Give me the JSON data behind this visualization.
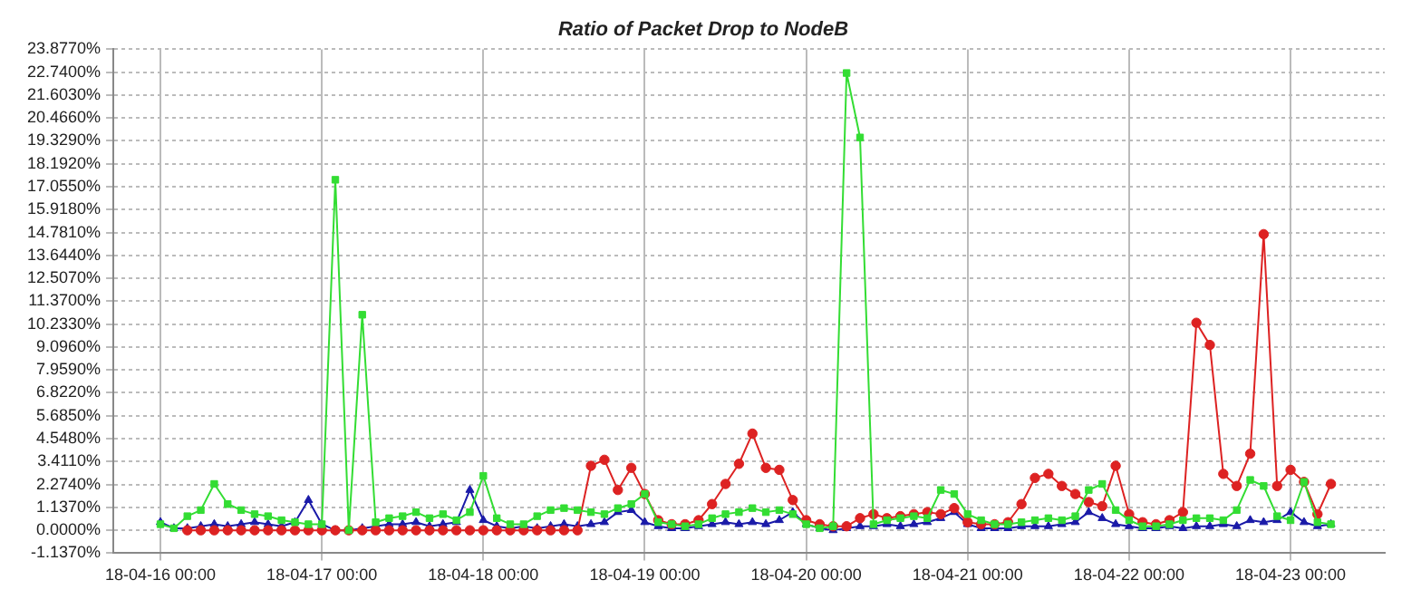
{
  "chart_data": {
    "type": "line",
    "title": "Ratio of Packet Drop to NodeB",
    "x": [
      "--04-16T00:00",
      "--04-16T02:00",
      "--04-16T04:00",
      "--04-16T06:00",
      "--04-16T08:00",
      "--04-16T10:00",
      "--04-16T12:00",
      "--04-16T14:00",
      "--04-16T16:00",
      "--04-16T18:00",
      "--04-16T20:00",
      "--04-16T22:00",
      "--04-17T00:00",
      "--04-17T02:00",
      "--04-17T04:00",
      "--04-17T06:00",
      "--04-17T08:00",
      "--04-17T10:00",
      "--04-17T12:00",
      "--04-17T14:00",
      "--04-17T16:00",
      "--04-17T18:00",
      "--04-17T20:00",
      "--04-17T22:00",
      "--04-18T00:00",
      "--04-18T02:00",
      "--04-18T04:00",
      "--04-18T06:00",
      "--04-18T08:00",
      "--04-18T10:00",
      "--04-18T12:00",
      "--04-18T14:00",
      "--04-18T16:00",
      "--04-18T18:00",
      "--04-18T20:00",
      "--04-18T22:00",
      "--04-19T00:00",
      "--04-19T02:00",
      "--04-19T04:00",
      "--04-19T06:00",
      "--04-19T08:00",
      "--04-19T10:00",
      "--04-19T12:00",
      "--04-19T14:00",
      "--04-19T16:00",
      "--04-19T18:00",
      "--04-19T20:00",
      "--04-19T22:00",
      "--04-20T00:00",
      "--04-20T02:00",
      "--04-20T04:00",
      "--04-20T06:00",
      "--04-20T08:00",
      "--04-20T10:00",
      "--04-20T12:00",
      "--04-20T14:00",
      "--04-20T16:00",
      "--04-20T18:00",
      "--04-20T20:00",
      "--04-20T22:00",
      "--04-21T00:00",
      "--04-21T02:00",
      "--04-21T04:00",
      "--04-21T06:00",
      "--04-21T08:00",
      "--04-21T10:00",
      "--04-21T12:00",
      "--04-21T14:00",
      "--04-21T16:00",
      "--04-21T18:00",
      "--04-21T20:00",
      "--04-21T22:00",
      "--04-22T00:00",
      "--04-22T02:00",
      "--04-22T04:00",
      "--04-22T06:00",
      "--04-22T08:00",
      "--04-22T10:00",
      "--04-22T12:00",
      "--04-22T14:00",
      "--04-22T16:00",
      "--04-22T18:00",
      "--04-22T20:00",
      "--04-22T22:00",
      "--04-23T00:00",
      "--04-23T02:00",
      "--04-23T04:00",
      "--04-23T06:00"
    ],
    "series": [
      {
        "color": "#33dd33",
        "marker": "square",
        "values": [
          0.3,
          0.1,
          0.7,
          1.0,
          2.3,
          1.3,
          1.0,
          0.8,
          0.7,
          0.5,
          0.4,
          0.3,
          0.3,
          17.4,
          0.0,
          10.7,
          0.4,
          0.6,
          0.7,
          0.9,
          0.6,
          0.8,
          0.5,
          0.9,
          2.7,
          0.6,
          0.3,
          0.3,
          0.7,
          1.0,
          1.1,
          1.0,
          0.9,
          0.8,
          1.1,
          1.3,
          1.8,
          0.4,
          0.3,
          0.2,
          0.3,
          0.6,
          0.8,
          0.9,
          1.1,
          0.9,
          1.0,
          0.8,
          0.3,
          0.1,
          0.2,
          22.7,
          19.5,
          0.3,
          0.5,
          0.6,
          0.7,
          0.6,
          2.0,
          1.8,
          0.8,
          0.5,
          0.3,
          0.3,
          0.4,
          0.5,
          0.6,
          0.5,
          0.7,
          2.0,
          2.3,
          1.0,
          0.5,
          0.2,
          0.2,
          0.3,
          0.5,
          0.6,
          0.6,
          0.5,
          1.0,
          2.5,
          2.2,
          0.7,
          0.5,
          2.4,
          0.4,
          0.3
        ]
      },
      {
        "color": "#dd2222",
        "marker": "circle",
        "values": [
          null,
          null,
          0.0,
          0.0,
          0.0,
          0.0,
          0.0,
          0.0,
          0.0,
          0.0,
          0.0,
          0.0,
          0.0,
          0.0,
          0.0,
          0.0,
          0.0,
          0.0,
          0.0,
          0.0,
          0.0,
          0.0,
          0.0,
          0.0,
          0.0,
          0.0,
          0.0,
          0.0,
          0.0,
          0.0,
          0.0,
          0.0,
          3.2,
          3.5,
          2.0,
          3.1,
          1.8,
          0.5,
          0.3,
          0.3,
          0.5,
          1.3,
          2.3,
          3.3,
          4.8,
          3.1,
          3.0,
          1.5,
          0.5,
          0.3,
          0.2,
          0.2,
          0.6,
          0.8,
          0.6,
          0.7,
          0.8,
          0.9,
          0.8,
          1.1,
          0.4,
          0.3,
          0.3,
          0.4,
          1.3,
          2.6,
          2.8,
          2.2,
          1.8,
          1.4,
          1.2,
          3.2,
          0.8,
          0.4,
          0.3,
          0.5,
          0.9,
          10.3,
          9.2,
          2.8,
          2.2,
          3.8,
          14.7,
          2.2,
          3.0,
          2.4,
          0.8,
          2.3
        ]
      },
      {
        "color": "#1a1aa8",
        "marker": "triangle",
        "values": [
          0.4,
          0.1,
          0.1,
          0.2,
          0.3,
          0.2,
          0.3,
          0.4,
          0.3,
          0.2,
          0.4,
          1.5,
          0.3,
          0.0,
          0.0,
          0.1,
          0.2,
          0.3,
          0.3,
          0.4,
          0.2,
          0.3,
          0.4,
          2.0,
          0.5,
          0.2,
          0.1,
          0.2,
          0.1,
          0.2,
          0.3,
          0.2,
          0.3,
          0.4,
          0.9,
          1.0,
          0.4,
          0.2,
          0.1,
          0.1,
          0.2,
          0.3,
          0.4,
          0.3,
          0.4,
          0.3,
          0.5,
          0.9,
          0.3,
          0.1,
          0.0,
          0.1,
          0.2,
          0.2,
          0.3,
          0.2,
          0.3,
          0.4,
          0.6,
          0.9,
          0.3,
          0.1,
          0.1,
          0.1,
          0.2,
          0.2,
          0.2,
          0.3,
          0.4,
          0.9,
          0.6,
          0.3,
          0.2,
          0.1,
          0.1,
          0.2,
          0.1,
          0.2,
          0.2,
          0.3,
          0.2,
          0.5,
          0.4,
          0.5,
          0.9,
          0.4,
          0.2,
          0.3
        ]
      }
    ],
    "xlim": [
      "--04-15T17:00",
      "--04-23T14:00"
    ],
    "xticks": [
      {
        "value": "--04-16T00:00",
        "label": "18-04-16 00:00"
      },
      {
        "value": "--04-17T00:00",
        "label": "18-04-17 00:00"
      },
      {
        "value": "--04-18T00:00",
        "label": "18-04-18 00:00"
      },
      {
        "value": "--04-19T00:00",
        "label": "18-04-19 00:00"
      },
      {
        "value": "--04-20T00:00",
        "label": "18-04-20 00:00"
      },
      {
        "value": "--04-21T00:00",
        "label": "18-04-21 00:00"
      },
      {
        "value": "--04-22T00:00",
        "label": "18-04-22 00:00"
      },
      {
        "value": "--04-23T00:00",
        "label": "18-04-23 00:00"
      }
    ],
    "ylim": [
      -1.137,
      23.877
    ],
    "yticks": [
      {
        "value": -1.137,
        "label": "-1.1370%"
      },
      {
        "value": 0,
        "label": "0.0000%"
      },
      {
        "value": 1.137,
        "label": "1.1370%"
      },
      {
        "value": 2.274,
        "label": "2.2740%"
      },
      {
        "value": 3.411,
        "label": "3.4110%"
      },
      {
        "value": 4.548,
        "label": "4.5480%"
      },
      {
        "value": 5.685,
        "label": "5.6850%"
      },
      {
        "value": 6.822,
        "label": "6.8220%"
      },
      {
        "value": 7.959,
        "label": "7.9590%"
      },
      {
        "value": 9.096,
        "label": "9.0960%"
      },
      {
        "value": 10.233,
        "label": "10.2330%"
      },
      {
        "value": 11.37,
        "label": "11.3700%"
      },
      {
        "value": 12.507,
        "label": "12.5070%"
      },
      {
        "value": 13.644,
        "label": "13.6440%"
      },
      {
        "value": 14.781,
        "label": "14.7810%"
      },
      {
        "value": 15.918,
        "label": "15.9180%"
      },
      {
        "value": 17.055,
        "label": "17.0550%"
      },
      {
        "value": 18.192,
        "label": "18.1920%"
      },
      {
        "value": 19.329,
        "label": "19.3290%"
      },
      {
        "value": 20.466,
        "label": "20.4660%"
      },
      {
        "value": 21.603,
        "label": "21.6030%"
      },
      {
        "value": 22.74,
        "label": "22.7400%"
      },
      {
        "value": 23.877,
        "label": "23.8770%"
      }
    ],
    "grid": true,
    "line_style": "solid"
  }
}
